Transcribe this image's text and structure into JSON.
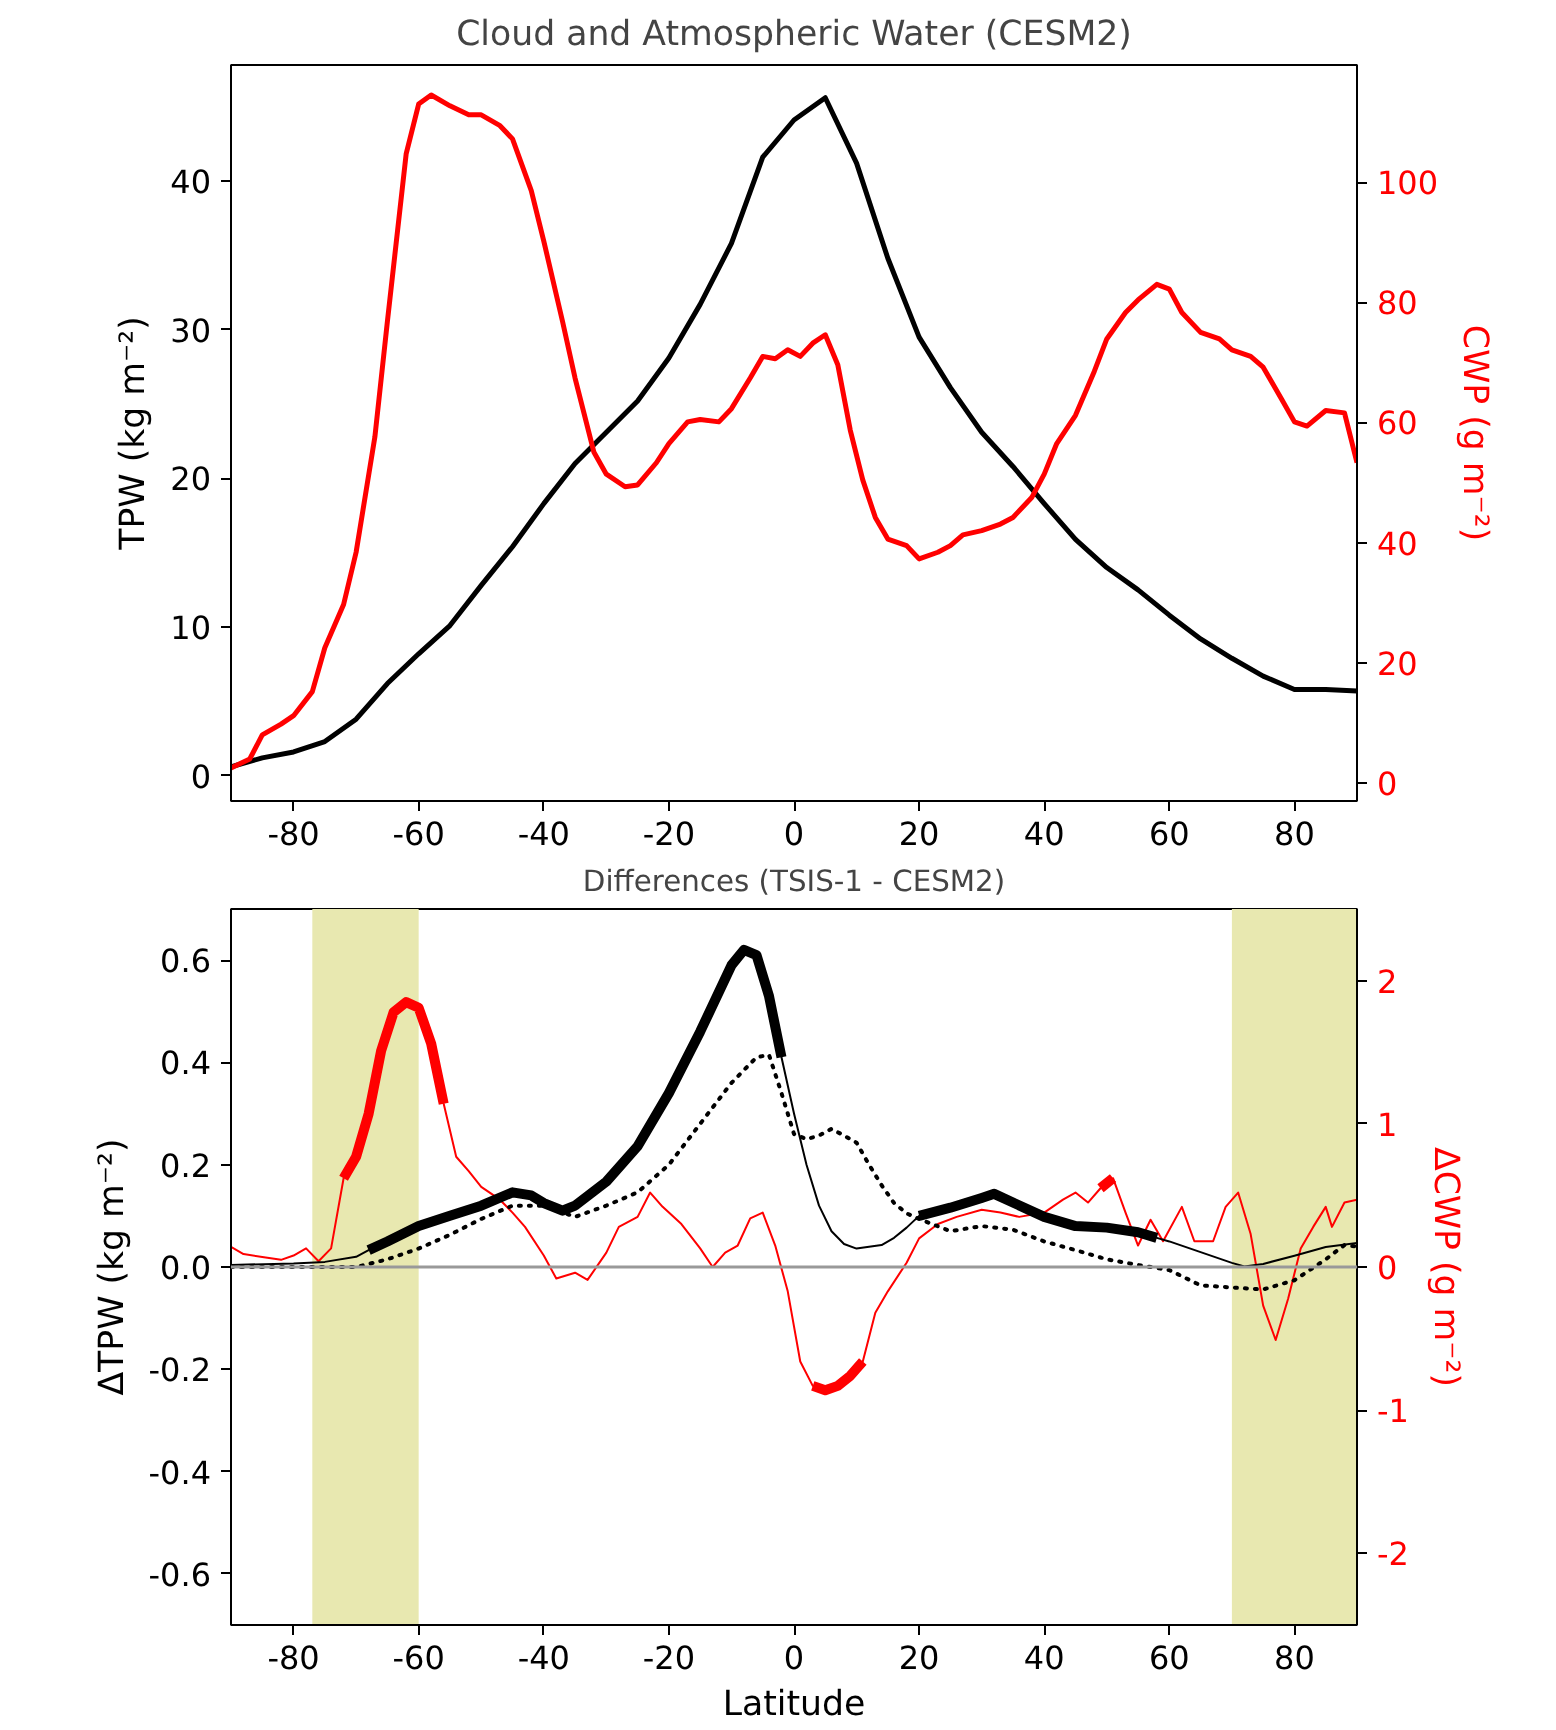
{
  "chart_data": [
    {
      "type": "line",
      "title": "Cloud and Atmospheric Water (CESM2)",
      "ylabel": "TPW (kg m⁻²)",
      "y2label": "CWP (g m⁻²)",
      "xlim": [
        -90,
        90
      ],
      "xticks": [
        -80,
        -60,
        -40,
        -20,
        0,
        20,
        40,
        60,
        80
      ],
      "ylim": [
        -1.7,
        47.8
      ],
      "yticks": [
        0,
        10,
        20,
        30,
        40
      ],
      "y2lim": [
        -3,
        119.5
      ],
      "y2ticks": [
        0,
        20,
        40,
        60,
        80,
        100
      ],
      "grid": false,
      "series": [
        {
          "color": "#000000",
          "x": [
            -90,
            -85,
            -80,
            -75,
            -70,
            -65,
            -60,
            -55,
            -50,
            -45,
            -40,
            -35,
            -30,
            -25,
            -20,
            -15,
            -10,
            -5,
            0,
            5,
            10,
            15,
            20,
            25,
            30,
            35,
            40,
            45,
            50,
            55,
            60,
            65,
            70,
            75,
            80,
            85,
            90
          ],
          "values": [
            0.6,
            1.2,
            1.6,
            2.3,
            3.8,
            6.2,
            8.2,
            10.1,
            12.8,
            15.4,
            18.3,
            21.0,
            23.1,
            25.2,
            28.1,
            31.7,
            35.8,
            41.6,
            44.1,
            45.6,
            41.2,
            34.8,
            29.5,
            26.1,
            23.1,
            20.8,
            18.3,
            15.9,
            14.0,
            12.5,
            10.8,
            9.2,
            7.9,
            6.7,
            5.8,
            5.8,
            5.7
          ]
        },
        {
          "color": "#ff0000",
          "axis": "y2",
          "x": [
            -90,
            -87,
            -85,
            -82,
            -80,
            -77,
            -75,
            -72,
            -70,
            -67,
            -65,
            -62,
            -60,
            -58,
            -55,
            -52,
            -50,
            -47,
            -45,
            -42,
            -40,
            -37,
            -35,
            -32,
            -30,
            -27,
            -25,
            -22,
            -20,
            -17,
            -15,
            -12,
            -10,
            -7,
            -5,
            -3,
            -1,
            1,
            3,
            5,
            7,
            9,
            11,
            13,
            15,
            18,
            20,
            23,
            25,
            27,
            30,
            33,
            35,
            38,
            40,
            42,
            45,
            48,
            50,
            53,
            55,
            58,
            60,
            62,
            65,
            68,
            70,
            73,
            75,
            78,
            80,
            82,
            85,
            88,
            90
          ],
          "values": [
            2.5,
            4.0,
            8.0,
            9.8,
            11.2,
            15.2,
            22.5,
            29.7,
            38.4,
            57.6,
            76.8,
            104.7,
            113.0,
            114.5,
            112.7,
            111.2,
            111.2,
            109.4,
            107.2,
            98.6,
            90.2,
            76.8,
            67.4,
            55.1,
            51.4,
            49.3,
            49.6,
            53.3,
            56.5,
            60.1,
            60.5,
            60.1,
            62.3,
            67.4,
            71.0,
            70.6,
            72.1,
            71.0,
            73.2,
            74.6,
            69.6,
            58.7,
            50.4,
            44.2,
            40.6,
            39.5,
            37.3,
            38.4,
            39.5,
            41.3,
            42.0,
            43.1,
            44.2,
            47.5,
            51.4,
            56.5,
            61.2,
            68.5,
            73.9,
            78.3,
            80.4,
            83.0,
            82.2,
            78.3,
            75.0,
            73.9,
            72.1,
            71.0,
            69.2,
            63.8,
            60.1,
            59.4,
            62.0,
            61.6,
            53.3
          ]
        }
      ]
    },
    {
      "type": "line",
      "title": "Differences (TSIS-1 - CESM2)",
      "xlabel": "Latitude",
      "ylabel": "ΔTPW (kg m⁻²)",
      "y2label": "ΔCWP (g m⁻²)",
      "xlim": [
        -90,
        90
      ],
      "xticks": [
        -80,
        -60,
        -40,
        -20,
        0,
        20,
        40,
        60,
        80
      ],
      "ylim": [
        -0.7,
        0.7
      ],
      "yticks": [
        -0.6,
        -0.4,
        -0.2,
        {
          "value": 0,
          "label": "0.0"
        },
        0.2,
        0.4,
        0.6
      ],
      "y2lim": [
        -2.5,
        2.5
      ],
      "y2ticks": [
        -2,
        -1,
        0,
        1,
        2
      ],
      "grid": false,
      "bands": [
        {
          "axis": "x",
          "from": -77,
          "to": -60,
          "color": "#e8e8b0"
        },
        {
          "axis": "x",
          "from": 70,
          "to": 90,
          "color": "#e8e8b0"
        }
      ],
      "ref_lines": [
        {
          "axis": "y",
          "value": 0,
          "color": "#999999"
        }
      ],
      "series": [
        {
          "color": "#ff0000",
          "axis": "y2",
          "x": [
            -90,
            -88,
            -85,
            -82,
            -80,
            -78,
            -76,
            -74,
            -72,
            -70,
            -68,
            -66,
            -64,
            -62,
            -60,
            -58,
            -56,
            -54,
            -52,
            -50,
            -47,
            -45,
            -43,
            -40,
            -38,
            -35,
            -33,
            -30,
            -28,
            -25,
            -23,
            -21,
            -18,
            -15,
            -13,
            -11,
            -9,
            -7,
            -5,
            -3,
            -1,
            1,
            3,
            5,
            7,
            9,
            11,
            13,
            15,
            18,
            20,
            23,
            26,
            30,
            33,
            36,
            40,
            43,
            45,
            47,
            49,
            51,
            53,
            55,
            57,
            59,
            62,
            64,
            67,
            69,
            71,
            73,
            75,
            77,
            79,
            81,
            83,
            85,
            86,
            88,
            90
          ],
          "values": [
            0.14,
            0.09,
            0.07,
            0.05,
            0.08,
            0.13,
            0.04,
            0.13,
            0.62,
            0.77,
            1.07,
            1.51,
            1.78,
            1.85,
            1.81,
            1.56,
            1.14,
            0.77,
            0.67,
            0.56,
            0.47,
            0.38,
            0.28,
            0.08,
            -0.08,
            -0.04,
            -0.09,
            0.1,
            0.28,
            0.35,
            0.52,
            0.42,
            0.3,
            0.13,
            0.0,
            0.1,
            0.15,
            0.34,
            0.38,
            0.15,
            -0.17,
            -0.66,
            -0.83,
            -0.86,
            -0.83,
            -0.76,
            -0.66,
            -0.32,
            -0.17,
            0.03,
            0.2,
            0.3,
            0.35,
            0.4,
            0.38,
            0.35,
            0.38,
            0.47,
            0.52,
            0.45,
            0.55,
            0.62,
            0.38,
            0.15,
            0.33,
            0.18,
            0.42,
            0.18,
            0.18,
            0.42,
            0.52,
            0.23,
            -0.27,
            -0.51,
            -0.22,
            0.13,
            0.28,
            0.42,
            0.28,
            0.45,
            0.47
          ]
        },
        {
          "color": "#ff0000",
          "axis": "y2",
          "x": [
            -72,
            -70,
            -68,
            -66,
            -64,
            -62,
            -60,
            -58,
            -56
          ],
          "values": [
            0.62,
            0.77,
            1.07,
            1.51,
            1.78,
            1.85,
            1.81,
            1.56,
            1.14
          ]
        },
        {
          "color": "#ff0000",
          "axis": "y2",
          "x": [
            3,
            5,
            7,
            9,
            11
          ],
          "values": [
            -0.83,
            -0.86,
            -0.83,
            -0.76,
            -0.66
          ]
        },
        {
          "color": "#ff0000",
          "axis": "y2",
          "x": [
            49,
            51
          ],
          "values": [
            0.55,
            0.62
          ]
        },
        {
          "color": "#000000",
          "line_style": "dotted",
          "x": [
            -90,
            -75,
            -70,
            -65,
            -60,
            -55,
            -50,
            -45,
            -40,
            -35,
            -30,
            -25,
            -20,
            -15,
            -10,
            -6,
            -4,
            -2,
            0,
            2,
            4,
            6,
            8,
            10,
            12,
            14,
            16,
            18,
            20,
            25,
            30,
            35,
            40,
            45,
            50,
            55,
            60,
            65,
            70,
            75,
            78,
            80,
            85,
            88,
            90
          ],
          "values": [
            0.0,
            0.0,
            0.0,
            0.015,
            0.036,
            0.063,
            0.094,
            0.12,
            0.12,
            0.098,
            0.12,
            0.146,
            0.2,
            0.28,
            0.36,
            0.41,
            0.415,
            0.34,
            0.26,
            0.25,
            0.257,
            0.27,
            0.257,
            0.243,
            0.2,
            0.16,
            0.125,
            0.105,
            0.094,
            0.07,
            0.08,
            0.073,
            0.05,
            0.033,
            0.015,
            0.004,
            -0.006,
            -0.036,
            -0.04,
            -0.044,
            -0.033,
            -0.026,
            0.015,
            0.043,
            0.04
          ]
        },
        {
          "color": "#000000",
          "x": [
            -90,
            -80,
            -75,
            -70,
            -68,
            -65,
            -60,
            -55,
            -50,
            -45,
            -42,
            -40,
            -37,
            -35,
            -30,
            -25,
            -20,
            -15,
            -10,
            -8,
            -6,
            -4,
            -2,
            0,
            2,
            4,
            6,
            8,
            10,
            14,
            16,
            18,
            20,
            25,
            30,
            32,
            35,
            40,
            45,
            50,
            55,
            58,
            60,
            65,
            70,
            72,
            75,
            80,
            85,
            90
          ],
          "values": [
            0.004,
            0.007,
            0.01,
            0.02,
            0.033,
            0.05,
            0.08,
            0.1,
            0.12,
            0.146,
            0.14,
            0.125,
            0.11,
            0.12,
            0.167,
            0.236,
            0.34,
            0.46,
            0.59,
            0.62,
            0.61,
            0.53,
            0.41,
            0.3,
            0.2,
            0.12,
            0.07,
            0.045,
            0.036,
            0.043,
            0.057,
            0.077,
            0.1,
            0.116,
            0.135,
            0.143,
            0.126,
            0.098,
            0.08,
            0.077,
            0.068,
            0.057,
            0.05,
            0.029,
            0.008,
            0.001,
            0.006,
            0.022,
            0.039,
            0.047
          ]
        },
        {
          "color": "#000000",
          "x": [
            -68,
            -65,
            -60,
            -55,
            -50,
            -45,
            -42,
            -40,
            -37,
            -35,
            -30,
            -25,
            -20,
            -15,
            -10,
            -8,
            -6,
            -4,
            -2
          ],
          "values": [
            0.033,
            0.05,
            0.08,
            0.1,
            0.12,
            0.146,
            0.14,
            0.125,
            0.11,
            0.12,
            0.167,
            0.236,
            0.34,
            0.46,
            0.59,
            0.62,
            0.61,
            0.53,
            0.41
          ]
        },
        {
          "color": "#000000",
          "x": [
            20,
            25,
            30,
            32,
            35,
            40,
            45,
            50,
            55,
            58
          ],
          "values": [
            0.1,
            0.116,
            0.135,
            0.143,
            0.126,
            0.098,
            0.08,
            0.077,
            0.068,
            0.057
          ]
        }
      ]
    }
  ]
}
